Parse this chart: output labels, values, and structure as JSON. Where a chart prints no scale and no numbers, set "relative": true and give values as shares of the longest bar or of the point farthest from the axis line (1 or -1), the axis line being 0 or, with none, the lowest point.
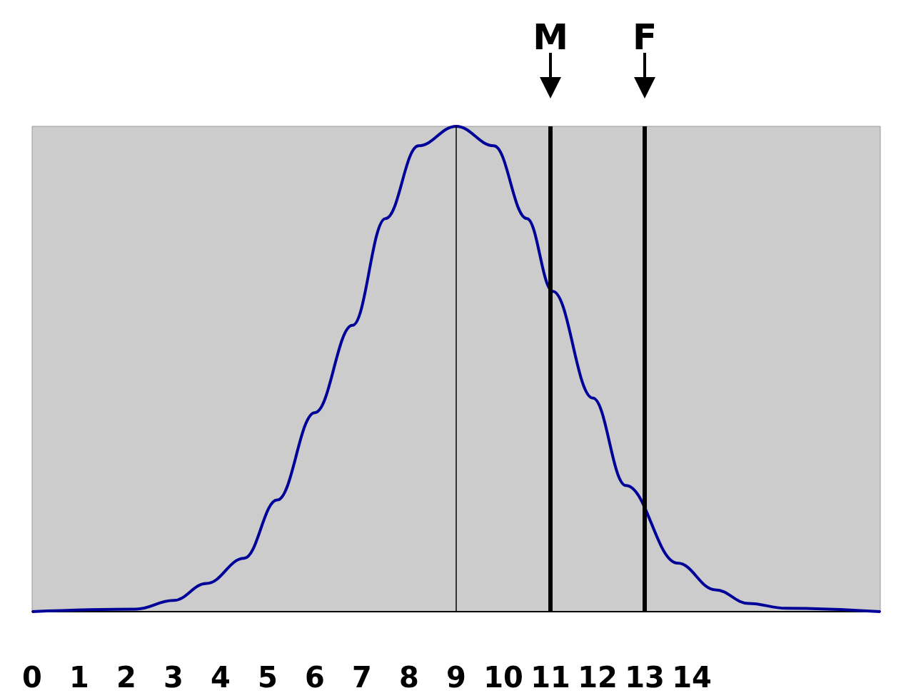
{
  "chart_data": {
    "type": "line",
    "relative": true,
    "x": [
      0,
      2.2,
      3.0,
      3.7,
      4.5,
      5.2,
      6.0,
      6.8,
      7.5,
      8.2,
      9,
      9.8,
      10.5,
      11.05,
      11.9,
      12.6,
      13.7,
      14.5,
      15.2,
      16.0,
      18
    ],
    "series": [
      {
        "color": "#000099",
        "values": [
          0,
          0.005,
          0.023,
          0.058,
          0.11,
          0.23,
          0.41,
          0.59,
          0.81,
          0.96,
          1,
          0.96,
          0.81,
          0.66,
          0.44,
          0.26,
          0.1,
          0.045,
          0.017,
          0.007,
          0
        ]
      }
    ],
    "xlim": [
      0,
      18
    ],
    "xticks": [
      0,
      1,
      2,
      3,
      4,
      5,
      6,
      7,
      8,
      9,
      10,
      11,
      12,
      13,
      14
    ],
    "ref_lines": [
      {
        "axis": "x",
        "value": 9,
        "color": "#000000"
      },
      {
        "axis": "x",
        "value": 11,
        "label": "M",
        "color": "#000000"
      },
      {
        "axis": "x",
        "value": 13,
        "label": "F",
        "color": "#000000"
      }
    ],
    "grid": false,
    "marker": "none",
    "line_style": "solid"
  }
}
